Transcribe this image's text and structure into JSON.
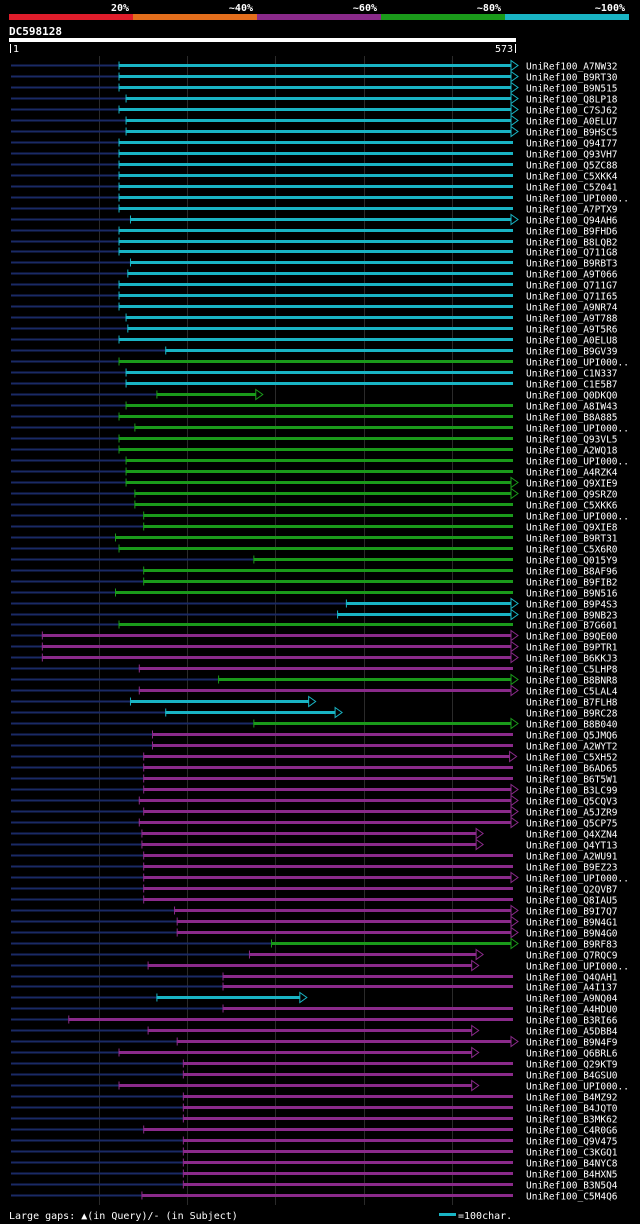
{
  "chart_data": {
    "type": "alignment-overview",
    "title": "DC598128",
    "query_length": 573,
    "ruler": {
      "start_label": "1",
      "end_label": "573"
    },
    "identity_scale": [
      {
        "label": "20%",
        "color": "#e01d2b"
      },
      {
        "label": "~40%",
        "color": "#e36e1c"
      },
      {
        "label": "~60%",
        "color": "#8a2a8a"
      },
      {
        "label": "~80%",
        "color": "#1a9a1a"
      },
      {
        "label": "~100%",
        "color": "#19b4c4"
      }
    ],
    "hits": [
      {
        "name": "UniRef100_A7NW32",
        "start": 122,
        "end": 586,
        "identity": "~100%",
        "arrow": true
      },
      {
        "name": "UniRef100_B9RT30",
        "start": 122,
        "end": 586,
        "identity": "~100%",
        "arrow": true
      },
      {
        "name": "UniRef100_B9N515",
        "start": 122,
        "end": 586,
        "identity": "~100%",
        "arrow": true
      },
      {
        "name": "UniRef100_Q8LP18",
        "start": 130,
        "end": 586,
        "identity": "~100%",
        "arrow": true
      },
      {
        "name": "UniRef100_C7SJ62",
        "start": 122,
        "end": 586,
        "identity": "~100%",
        "arrow": true
      },
      {
        "name": "UniRef100_A0ELU7",
        "start": 130,
        "end": 586,
        "identity": "~100%",
        "arrow": true
      },
      {
        "name": "UniRef100_B9HSC5",
        "start": 130,
        "end": 586,
        "identity": "~100%",
        "arrow": true
      },
      {
        "name": "UniRef100_Q94I77",
        "start": 122,
        "end": 586,
        "identity": "~100%",
        "arrow": false
      },
      {
        "name": "UniRef100_Q93VH7",
        "start": 122,
        "end": 586,
        "identity": "~100%",
        "arrow": false
      },
      {
        "name": "UniRef100_Q5ZC88",
        "start": 122,
        "end": 586,
        "identity": "~100%",
        "arrow": false
      },
      {
        "name": "UniRef100_C5XKK4",
        "start": 122,
        "end": 586,
        "identity": "~100%",
        "arrow": false
      },
      {
        "name": "UniRef100_C5Z041",
        "start": 122,
        "end": 586,
        "identity": "~100%",
        "arrow": false
      },
      {
        "name": "UniRef100_UPI000..",
        "start": 122,
        "end": 586,
        "identity": "~100%",
        "arrow": false
      },
      {
        "name": "UniRef100_A7PTX9",
        "start": 122,
        "end": 586,
        "identity": "~100%",
        "arrow": false
      },
      {
        "name": "UniRef100_Q94AH6",
        "start": 135,
        "end": 586,
        "identity": "~100%",
        "arrow": true
      },
      {
        "name": "UniRef100_B9FHD6",
        "start": 122,
        "end": 586,
        "identity": "~100%",
        "arrow": false
      },
      {
        "name": "UniRef100_B8LQB2",
        "start": 122,
        "end": 586,
        "identity": "~100%",
        "arrow": false
      },
      {
        "name": "UniRef100_Q711G8",
        "start": 122,
        "end": 586,
        "identity": "~100%",
        "arrow": false
      },
      {
        "name": "UniRef100_B9RBT3",
        "start": 135,
        "end": 586,
        "identity": "~100%",
        "arrow": false
      },
      {
        "name": "UniRef100_A9T066",
        "start": 132,
        "end": 586,
        "identity": "~100%",
        "arrow": false
      },
      {
        "name": "UniRef100_Q711G7",
        "start": 122,
        "end": 586,
        "identity": "~100%",
        "arrow": false
      },
      {
        "name": "UniRef100_Q71I65",
        "start": 122,
        "end": 586,
        "identity": "~100%",
        "arrow": false
      },
      {
        "name": "UniRef100_A9NR74",
        "start": 122,
        "end": 586,
        "identity": "~100%",
        "arrow": false
      },
      {
        "name": "UniRef100_A9T788",
        "start": 130,
        "end": 586,
        "identity": "~100%",
        "arrow": false
      },
      {
        "name": "UniRef100_A9T5R6",
        "start": 132,
        "end": 586,
        "identity": "~100%",
        "arrow": false
      },
      {
        "name": "UniRef100_A0ELU8",
        "start": 122,
        "end": 586,
        "identity": "~100%",
        "arrow": false
      },
      {
        "name": "UniRef100_B9GV39",
        "start": 175,
        "end": 586,
        "identity": "~100%",
        "arrow": false
      },
      {
        "name": "UniRef100_UPI000..",
        "start": 122,
        "end": 586,
        "identity": "~80%",
        "arrow": false
      },
      {
        "name": "UniRef100_C1N337",
        "start": 130,
        "end": 586,
        "identity": "~100%",
        "arrow": false
      },
      {
        "name": "UniRef100_C1E5B7",
        "start": 130,
        "end": 586,
        "identity": "~100%",
        "arrow": false
      },
      {
        "name": "UniRef100_Q0DKQ0",
        "start": 165,
        "end": 280,
        "identity": "~80%",
        "arrow": true
      },
      {
        "name": "UniRef100_A8IW43",
        "start": 130,
        "end": 586,
        "identity": "~80%",
        "arrow": false
      },
      {
        "name": "UniRef100_B8A885",
        "start": 122,
        "end": 586,
        "identity": "~80%",
        "arrow": false
      },
      {
        "name": "UniRef100_UPI000..",
        "start": 140,
        "end": 586,
        "identity": "~80%",
        "arrow": false
      },
      {
        "name": "UniRef100_Q93VL5",
        "start": 122,
        "end": 586,
        "identity": "~80%",
        "arrow": false
      },
      {
        "name": "UniRef100_A2WQ18",
        "start": 122,
        "end": 586,
        "identity": "~80%",
        "arrow": false
      },
      {
        "name": "UniRef100_UPI000..",
        "start": 130,
        "end": 586,
        "identity": "~80%",
        "arrow": false
      },
      {
        "name": "UniRef100_A4RZK4",
        "start": 130,
        "end": 586,
        "identity": "~80%",
        "arrow": false
      },
      {
        "name": "UniRef100_Q9XIE9",
        "start": 130,
        "end": 578,
        "identity": "~80%",
        "arrow": true
      },
      {
        "name": "UniRef100_Q9SRZ0",
        "start": 140,
        "end": 586,
        "identity": "~80%",
        "arrow": true
      },
      {
        "name": "UniRef100_C5XKK6",
        "start": 140,
        "end": 586,
        "identity": "~80%",
        "arrow": false
      },
      {
        "name": "UniRef100_UPI000..",
        "start": 150,
        "end": 586,
        "identity": "~80%",
        "arrow": false
      },
      {
        "name": "UniRef100_Q9XIE8",
        "start": 150,
        "end": 586,
        "identity": "~80%",
        "arrow": false
      },
      {
        "name": "UniRef100_B9RT31",
        "start": 118,
        "end": 586,
        "identity": "~80%",
        "arrow": false
      },
      {
        "name": "UniRef100_C5X6R0",
        "start": 122,
        "end": 586,
        "identity": "~80%",
        "arrow": false
      },
      {
        "name": "UniRef100_Q015Y9",
        "start": 275,
        "end": 586,
        "identity": "~80%",
        "arrow": false
      },
      {
        "name": "UniRef100_B8AF96",
        "start": 150,
        "end": 586,
        "identity": "~80%",
        "arrow": false
      },
      {
        "name": "UniRef100_B9FIB2",
        "start": 150,
        "end": 586,
        "identity": "~80%",
        "arrow": false
      },
      {
        "name": "UniRef100_B9N516",
        "start": 118,
        "end": 586,
        "identity": "~80%",
        "arrow": false
      },
      {
        "name": "UniRef100_B9P4S3",
        "start": 380,
        "end": 586,
        "identity": "~100%",
        "arrow": true
      },
      {
        "name": "UniRef100_B9NB23",
        "start": 370,
        "end": 580,
        "identity": "~100%",
        "arrow": true
      },
      {
        "name": "UniRef100_B7G601",
        "start": 122,
        "end": 586,
        "identity": "~80%",
        "arrow": false
      },
      {
        "name": "UniRef100_B9QE00",
        "start": 35,
        "end": 586,
        "identity": "~60%",
        "arrow": true
      },
      {
        "name": "UniRef100_B9PTR1",
        "start": 35,
        "end": 586,
        "identity": "~60%",
        "arrow": true
      },
      {
        "name": "UniRef100_B6KKJ3",
        "start": 35,
        "end": 586,
        "identity": "~60%",
        "arrow": true
      },
      {
        "name": "UniRef100_C5LHP8",
        "start": 145,
        "end": 586,
        "identity": "~60%",
        "arrow": false
      },
      {
        "name": "UniRef100_B8BNR8",
        "start": 235,
        "end": 586,
        "identity": "~80%",
        "arrow": true
      },
      {
        "name": "UniRef100_C5LAL4",
        "start": 145,
        "end": 586,
        "identity": "~60%",
        "arrow": true
      },
      {
        "name": "UniRef100_B7FLH8",
        "start": 135,
        "end": 340,
        "identity": "~100%",
        "arrow": true
      },
      {
        "name": "UniRef100_B9RC28",
        "start": 175,
        "end": 370,
        "identity": "~100%",
        "arrow": true
      },
      {
        "name": "UniRef100_B8B040",
        "start": 275,
        "end": 586,
        "identity": "~80%",
        "arrow": true
      },
      {
        "name": "UniRef100_Q5JMQ6",
        "start": 160,
        "end": 586,
        "identity": "~60%",
        "arrow": false
      },
      {
        "name": "UniRef100_A2WYT2",
        "start": 160,
        "end": 586,
        "identity": "~60%",
        "arrow": false
      },
      {
        "name": "UniRef100_C5XH52",
        "start": 150,
        "end": 568,
        "identity": "~60%",
        "arrow": true
      },
      {
        "name": "UniRef100_B6AD65",
        "start": 150,
        "end": 586,
        "identity": "~60%",
        "arrow": false
      },
      {
        "name": "UniRef100_B6T5W1",
        "start": 150,
        "end": 586,
        "identity": "~60%",
        "arrow": false
      },
      {
        "name": "UniRef100_B3LC99",
        "start": 150,
        "end": 578,
        "identity": "~60%",
        "arrow": true
      },
      {
        "name": "UniRef100_Q5CQV3",
        "start": 145,
        "end": 586,
        "identity": "~60%",
        "arrow": true
      },
      {
        "name": "UniRef100_A5JZR9",
        "start": 150,
        "end": 578,
        "identity": "~60%",
        "arrow": true
      },
      {
        "name": "UniRef100_Q5CP75",
        "start": 145,
        "end": 586,
        "identity": "~60%",
        "arrow": true
      },
      {
        "name": "UniRef100_Q4XZN4",
        "start": 148,
        "end": 530,
        "identity": "~60%",
        "arrow": true
      },
      {
        "name": "UniRef100_Q4YT13",
        "start": 148,
        "end": 530,
        "identity": "~60%",
        "arrow": true
      },
      {
        "name": "UniRef100_A2WU91",
        "start": 150,
        "end": 586,
        "identity": "~60%",
        "arrow": false
      },
      {
        "name": "UniRef100_B9EZ23",
        "start": 150,
        "end": 586,
        "identity": "~60%",
        "arrow": false
      },
      {
        "name": "UniRef100_UPI000..",
        "start": 150,
        "end": 570,
        "identity": "~60%",
        "arrow": true
      },
      {
        "name": "UniRef100_Q2QVB7",
        "start": 150,
        "end": 586,
        "identity": "~60%",
        "arrow": false
      },
      {
        "name": "UniRef100_Q8IAU5",
        "start": 150,
        "end": 586,
        "identity": "~60%",
        "arrow": false
      },
      {
        "name": "UniRef100_B9I7Q7",
        "start": 185,
        "end": 586,
        "identity": "~60%",
        "arrow": true
      },
      {
        "name": "UniRef100_B9N4G1",
        "start": 188,
        "end": 578,
        "identity": "~60%",
        "arrow": true
      },
      {
        "name": "UniRef100_B9N4G0",
        "start": 188,
        "end": 578,
        "identity": "~60%",
        "arrow": true
      },
      {
        "name": "UniRef100_B9RF83",
        "start": 295,
        "end": 586,
        "identity": "~80%",
        "arrow": true
      },
      {
        "name": "UniRef100_Q7RQC9",
        "start": 270,
        "end": 530,
        "identity": "~60%",
        "arrow": true
      },
      {
        "name": "UniRef100_UPI000..",
        "start": 155,
        "end": 525,
        "identity": "~60%",
        "arrow": true
      },
      {
        "name": "UniRef100_Q4QAH1",
        "start": 240,
        "end": 586,
        "identity": "~60%",
        "arrow": false
      },
      {
        "name": "UniRef100_A4I137",
        "start": 240,
        "end": 586,
        "identity": "~60%",
        "arrow": false
      },
      {
        "name": "UniRef100_A9NQ04",
        "start": 165,
        "end": 330,
        "identity": "~100%",
        "arrow": true
      },
      {
        "name": "UniRef100_A4HDU0",
        "start": 240,
        "end": 586,
        "identity": "~60%",
        "arrow": false
      },
      {
        "name": "UniRef100_B3RI66",
        "start": 65,
        "end": 586,
        "identity": "~60%",
        "arrow": false
      },
      {
        "name": "UniRef100_A5DBB4",
        "start": 155,
        "end": 525,
        "identity": "~60%",
        "arrow": true
      },
      {
        "name": "UniRef100_B9N4F9",
        "start": 188,
        "end": 578,
        "identity": "~60%",
        "arrow": true
      },
      {
        "name": "UniRef100_Q6BRL6",
        "start": 122,
        "end": 525,
        "identity": "~60%",
        "arrow": true
      },
      {
        "name": "UniRef100_Q29KT9",
        "start": 195,
        "end": 586,
        "identity": "~60%",
        "arrow": false
      },
      {
        "name": "UniRef100_B4GSU0",
        "start": 195,
        "end": 586,
        "identity": "~60%",
        "arrow": false
      },
      {
        "name": "UniRef100_UPI000..",
        "start": 122,
        "end": 525,
        "identity": "~60%",
        "arrow": true
      },
      {
        "name": "UniRef100_B4MZ92",
        "start": 195,
        "end": 586,
        "identity": "~60%",
        "arrow": false
      },
      {
        "name": "UniRef100_B4JQT0",
        "start": 195,
        "end": 586,
        "identity": "~60%",
        "arrow": false
      },
      {
        "name": "UniRef100_B3MK62",
        "start": 195,
        "end": 586,
        "identity": "~60%",
        "arrow": false
      },
      {
        "name": "UniRef100_C4R0G6",
        "start": 150,
        "end": 586,
        "identity": "~60%",
        "arrow": false
      },
      {
        "name": "UniRef100_Q9V475",
        "start": 195,
        "end": 586,
        "identity": "~60%",
        "arrow": false
      },
      {
        "name": "UniRef100_C3KGQ1",
        "start": 195,
        "end": 586,
        "identity": "~60%",
        "arrow": false
      },
      {
        "name": "UniRef100_B4NYC8",
        "start": 195,
        "end": 586,
        "identity": "~60%",
        "arrow": false
      },
      {
        "name": "UniRef100_B4HXN5",
        "start": 195,
        "end": 586,
        "identity": "~60%",
        "arrow": false
      },
      {
        "name": "UniRef100_B3N5Q4",
        "start": 195,
        "end": 586,
        "identity": "~60%",
        "arrow": false
      },
      {
        "name": "UniRef100_C5M4Q6",
        "start": 148,
        "end": 586,
        "identity": "~60%",
        "arrow": false
      }
    ],
    "footer": {
      "gaps_label": "Large gaps: ▲(in Query)/- (in Subject)",
      "scale_label": "=100char."
    },
    "colors": {
      "background": "#000000",
      "text": "#ffffff",
      "grid": "#2a2a2a",
      "tail": "#1a2a66",
      "query_bar": "#ffffff",
      "gap_marker": "#ffff66"
    }
  }
}
